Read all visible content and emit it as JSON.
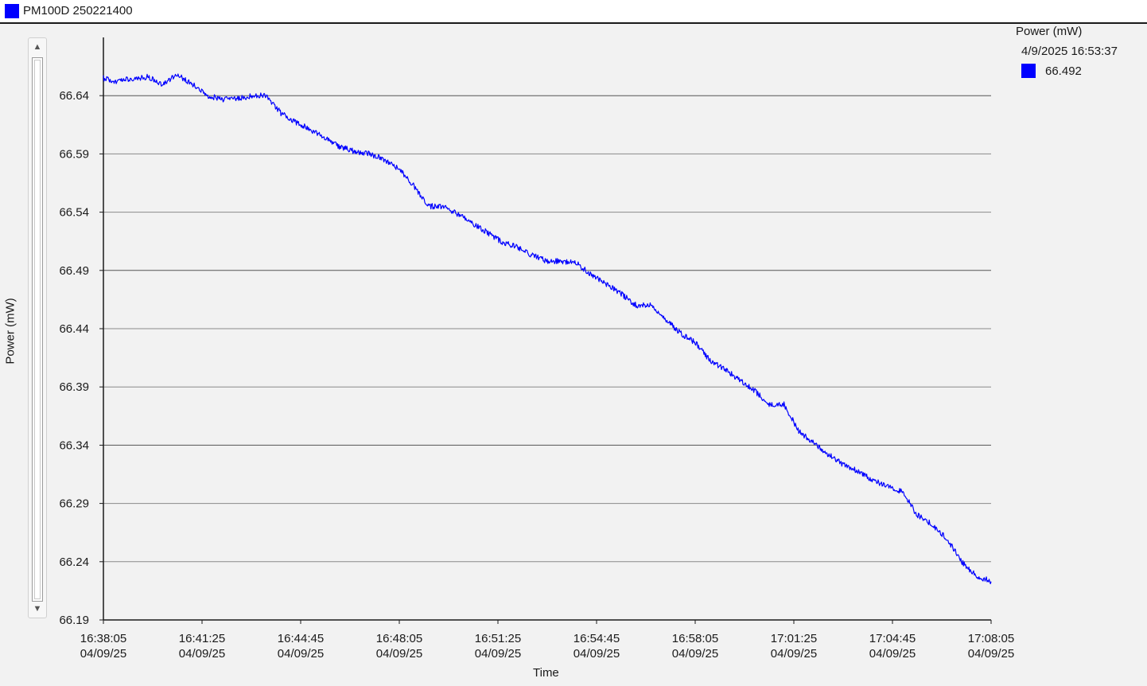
{
  "window": {
    "title": "PM100D 250221400",
    "title_swatch_color": "#0000ff"
  },
  "legend": {
    "title": "Power (mW)",
    "timestamp": "4/9/2025 16:53:37",
    "series_color": "#0000ff",
    "current_value": "66.492"
  },
  "scrollbar": {
    "up_icon": "arrow-up-icon",
    "down_icon": "arrow-down-icon"
  },
  "chart_data": {
    "type": "line",
    "ylabel": "Power (mW)",
    "xlabel": "Time",
    "ylim": [
      66.19,
      66.69
    ],
    "y_ticks": [
      "66.19",
      "66.24",
      "66.29",
      "66.34",
      "66.39",
      "66.44",
      "66.49",
      "66.54",
      "66.59",
      "66.64"
    ],
    "x_range": [
      "16:38:05",
      "17:08:05"
    ],
    "x_ticks": [
      {
        "time": "16:38:05",
        "date": "04/09/25"
      },
      {
        "time": "16:41:25",
        "date": "04/09/25"
      },
      {
        "time": "16:44:45",
        "date": "04/09/25"
      },
      {
        "time": "16:48:05",
        "date": "04/09/25"
      },
      {
        "time": "16:51:25",
        "date": "04/09/25"
      },
      {
        "time": "16:54:45",
        "date": "04/09/25"
      },
      {
        "time": "16:58:05",
        "date": "04/09/25"
      },
      {
        "time": "17:01:25",
        "date": "04/09/25"
      },
      {
        "time": "17:04:45",
        "date": "04/09/25"
      },
      {
        "time": "17:08:05",
        "date": "04/09/25"
      }
    ],
    "grid": true,
    "series": [
      {
        "color": "#0000ff",
        "points": [
          [
            "16:38:05",
            66.655
          ],
          [
            "16:38:35",
            66.652
          ],
          [
            "16:39:05",
            66.655
          ],
          [
            "16:39:35",
            66.656
          ],
          [
            "16:40:05",
            66.65
          ],
          [
            "16:40:35",
            66.658
          ],
          [
            "16:41:05",
            66.65
          ],
          [
            "16:41:35",
            66.64
          ],
          [
            "16:42:05",
            66.637
          ],
          [
            "16:42:35",
            66.637
          ],
          [
            "16:43:05",
            66.64
          ],
          [
            "16:43:35",
            66.64
          ],
          [
            "16:44:05",
            66.625
          ],
          [
            "16:44:35",
            66.617
          ],
          [
            "16:45:05",
            66.611
          ],
          [
            "16:45:35",
            66.603
          ],
          [
            "16:46:05",
            66.596
          ],
          [
            "16:46:35",
            66.592
          ],
          [
            "16:47:05",
            66.59
          ],
          [
            "16:47:35",
            66.585
          ],
          [
            "16:48:05",
            66.577
          ],
          [
            "16:48:35",
            66.562
          ],
          [
            "16:49:05",
            66.545
          ],
          [
            "16:49:35",
            66.545
          ],
          [
            "16:50:05",
            66.538
          ],
          [
            "16:50:35",
            66.53
          ],
          [
            "16:51:05",
            66.522
          ],
          [
            "16:51:35",
            66.514
          ],
          [
            "16:52:05",
            66.51
          ],
          [
            "16:52:35",
            66.503
          ],
          [
            "16:53:05",
            66.498
          ],
          [
            "16:53:35",
            66.498
          ],
          [
            "16:54:05",
            66.496
          ],
          [
            "16:54:35",
            66.486
          ],
          [
            "16:55:05",
            66.478
          ],
          [
            "16:55:35",
            66.47
          ],
          [
            "16:56:05",
            66.46
          ],
          [
            "16:56:35",
            66.46
          ],
          [
            "16:57:05",
            66.448
          ],
          [
            "16:57:35",
            66.436
          ],
          [
            "16:58:05",
            66.428
          ],
          [
            "16:58:35",
            66.413
          ],
          [
            "16:59:05",
            66.405
          ],
          [
            "16:59:35",
            66.396
          ],
          [
            "17:00:05",
            66.387
          ],
          [
            "17:00:35",
            66.375
          ],
          [
            "17:01:05",
            66.375
          ],
          [
            "17:01:35",
            66.352
          ],
          [
            "17:02:05",
            66.342
          ],
          [
            "17:02:35",
            66.332
          ],
          [
            "17:03:05",
            66.323
          ],
          [
            "17:03:35",
            66.318
          ],
          [
            "17:04:05",
            66.31
          ],
          [
            "17:04:35",
            66.305
          ],
          [
            "17:05:05",
            66.3
          ],
          [
            "17:05:35",
            66.28
          ],
          [
            "17:06:05",
            66.272
          ],
          [
            "17:06:35",
            66.26
          ],
          [
            "17:07:05",
            66.24
          ],
          [
            "17:07:35",
            66.228
          ],
          [
            "17:08:05",
            66.223
          ]
        ]
      }
    ]
  }
}
